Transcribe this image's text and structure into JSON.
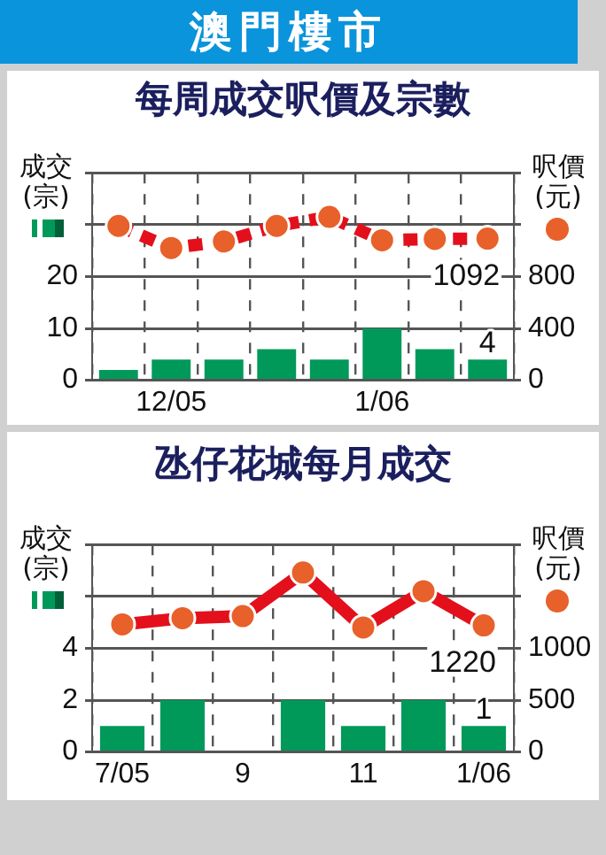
{
  "chart_data": [
    {
      "type": "bar",
      "title": "澳門樓市",
      "subtitle": "每周成交呎價及宗數",
      "ylabel": "成交\n(宗)",
      "y2label": "呎價\n(元)",
      "categories": [
        null,
        "12/05",
        null,
        null,
        null,
        "1/06",
        null,
        null
      ],
      "ylim": [
        0,
        40
      ],
      "yticks": [
        0,
        10,
        20,
        {
          "value": 30,
          "label": null
        },
        {
          "value": 40,
          "label": null
        }
      ],
      "y2lim": [
        0,
        1600
      ],
      "y2ticks": [
        0,
        400,
        800,
        {
          "value": 1200,
          "label": null
        },
        {
          "value": 1600,
          "label": null
        }
      ],
      "series": [
        {
          "color": "#00995a",
          "values": [
            2,
            4,
            4,
            6,
            4,
            10,
            6,
            4
          ],
          "value_labels": [
            null,
            null,
            null,
            null,
            null,
            null,
            null,
            "4"
          ]
        },
        {
          "type": "line",
          "axis": "y2",
          "color": "#e3101c",
          "values": [
            1190,
            1020,
            1070,
            1190,
            1260,
            1080,
            1090,
            1092
          ],
          "value_labels": [
            null,
            null,
            null,
            null,
            null,
            null,
            null,
            "1092"
          ]
        }
      ],
      "grid": true,
      "legend": false,
      "marker": "circle",
      "line_style": "dashed"
    },
    {
      "type": "bar",
      "title": "氹仔花城每月成交",
      "ylabel": "成交\n(宗)",
      "y2label": "呎價\n(元)",
      "categories": [
        "7/05",
        null,
        "9",
        null,
        "11",
        null,
        "1/06"
      ],
      "ylim": [
        0,
        8
      ],
      "yticks": [
        0,
        2,
        4,
        {
          "value": 6,
          "label": null
        },
        {
          "value": 8,
          "label": null
        }
      ],
      "y2lim": [
        0,
        2000
      ],
      "y2ticks": [
        0,
        500,
        1000,
        {
          "value": 1500,
          "label": null
        },
        {
          "value": 2000,
          "label": null
        }
      ],
      "series": [
        {
          "color": "#00995a",
          "values": [
            1,
            2,
            0,
            2,
            1,
            2,
            1
          ],
          "value_labels": [
            null,
            null,
            null,
            null,
            null,
            null,
            "1"
          ]
        },
        {
          "type": "line",
          "axis": "y2",
          "color": "#e3101c",
          "values": [
            1230,
            1290,
            1310,
            1730,
            1200,
            1550,
            1220
          ],
          "value_labels": [
            null,
            null,
            null,
            null,
            null,
            null,
            "1220"
          ]
        }
      ],
      "grid": true,
      "legend": false,
      "marker": "circle",
      "line_style": "solid"
    }
  ]
}
